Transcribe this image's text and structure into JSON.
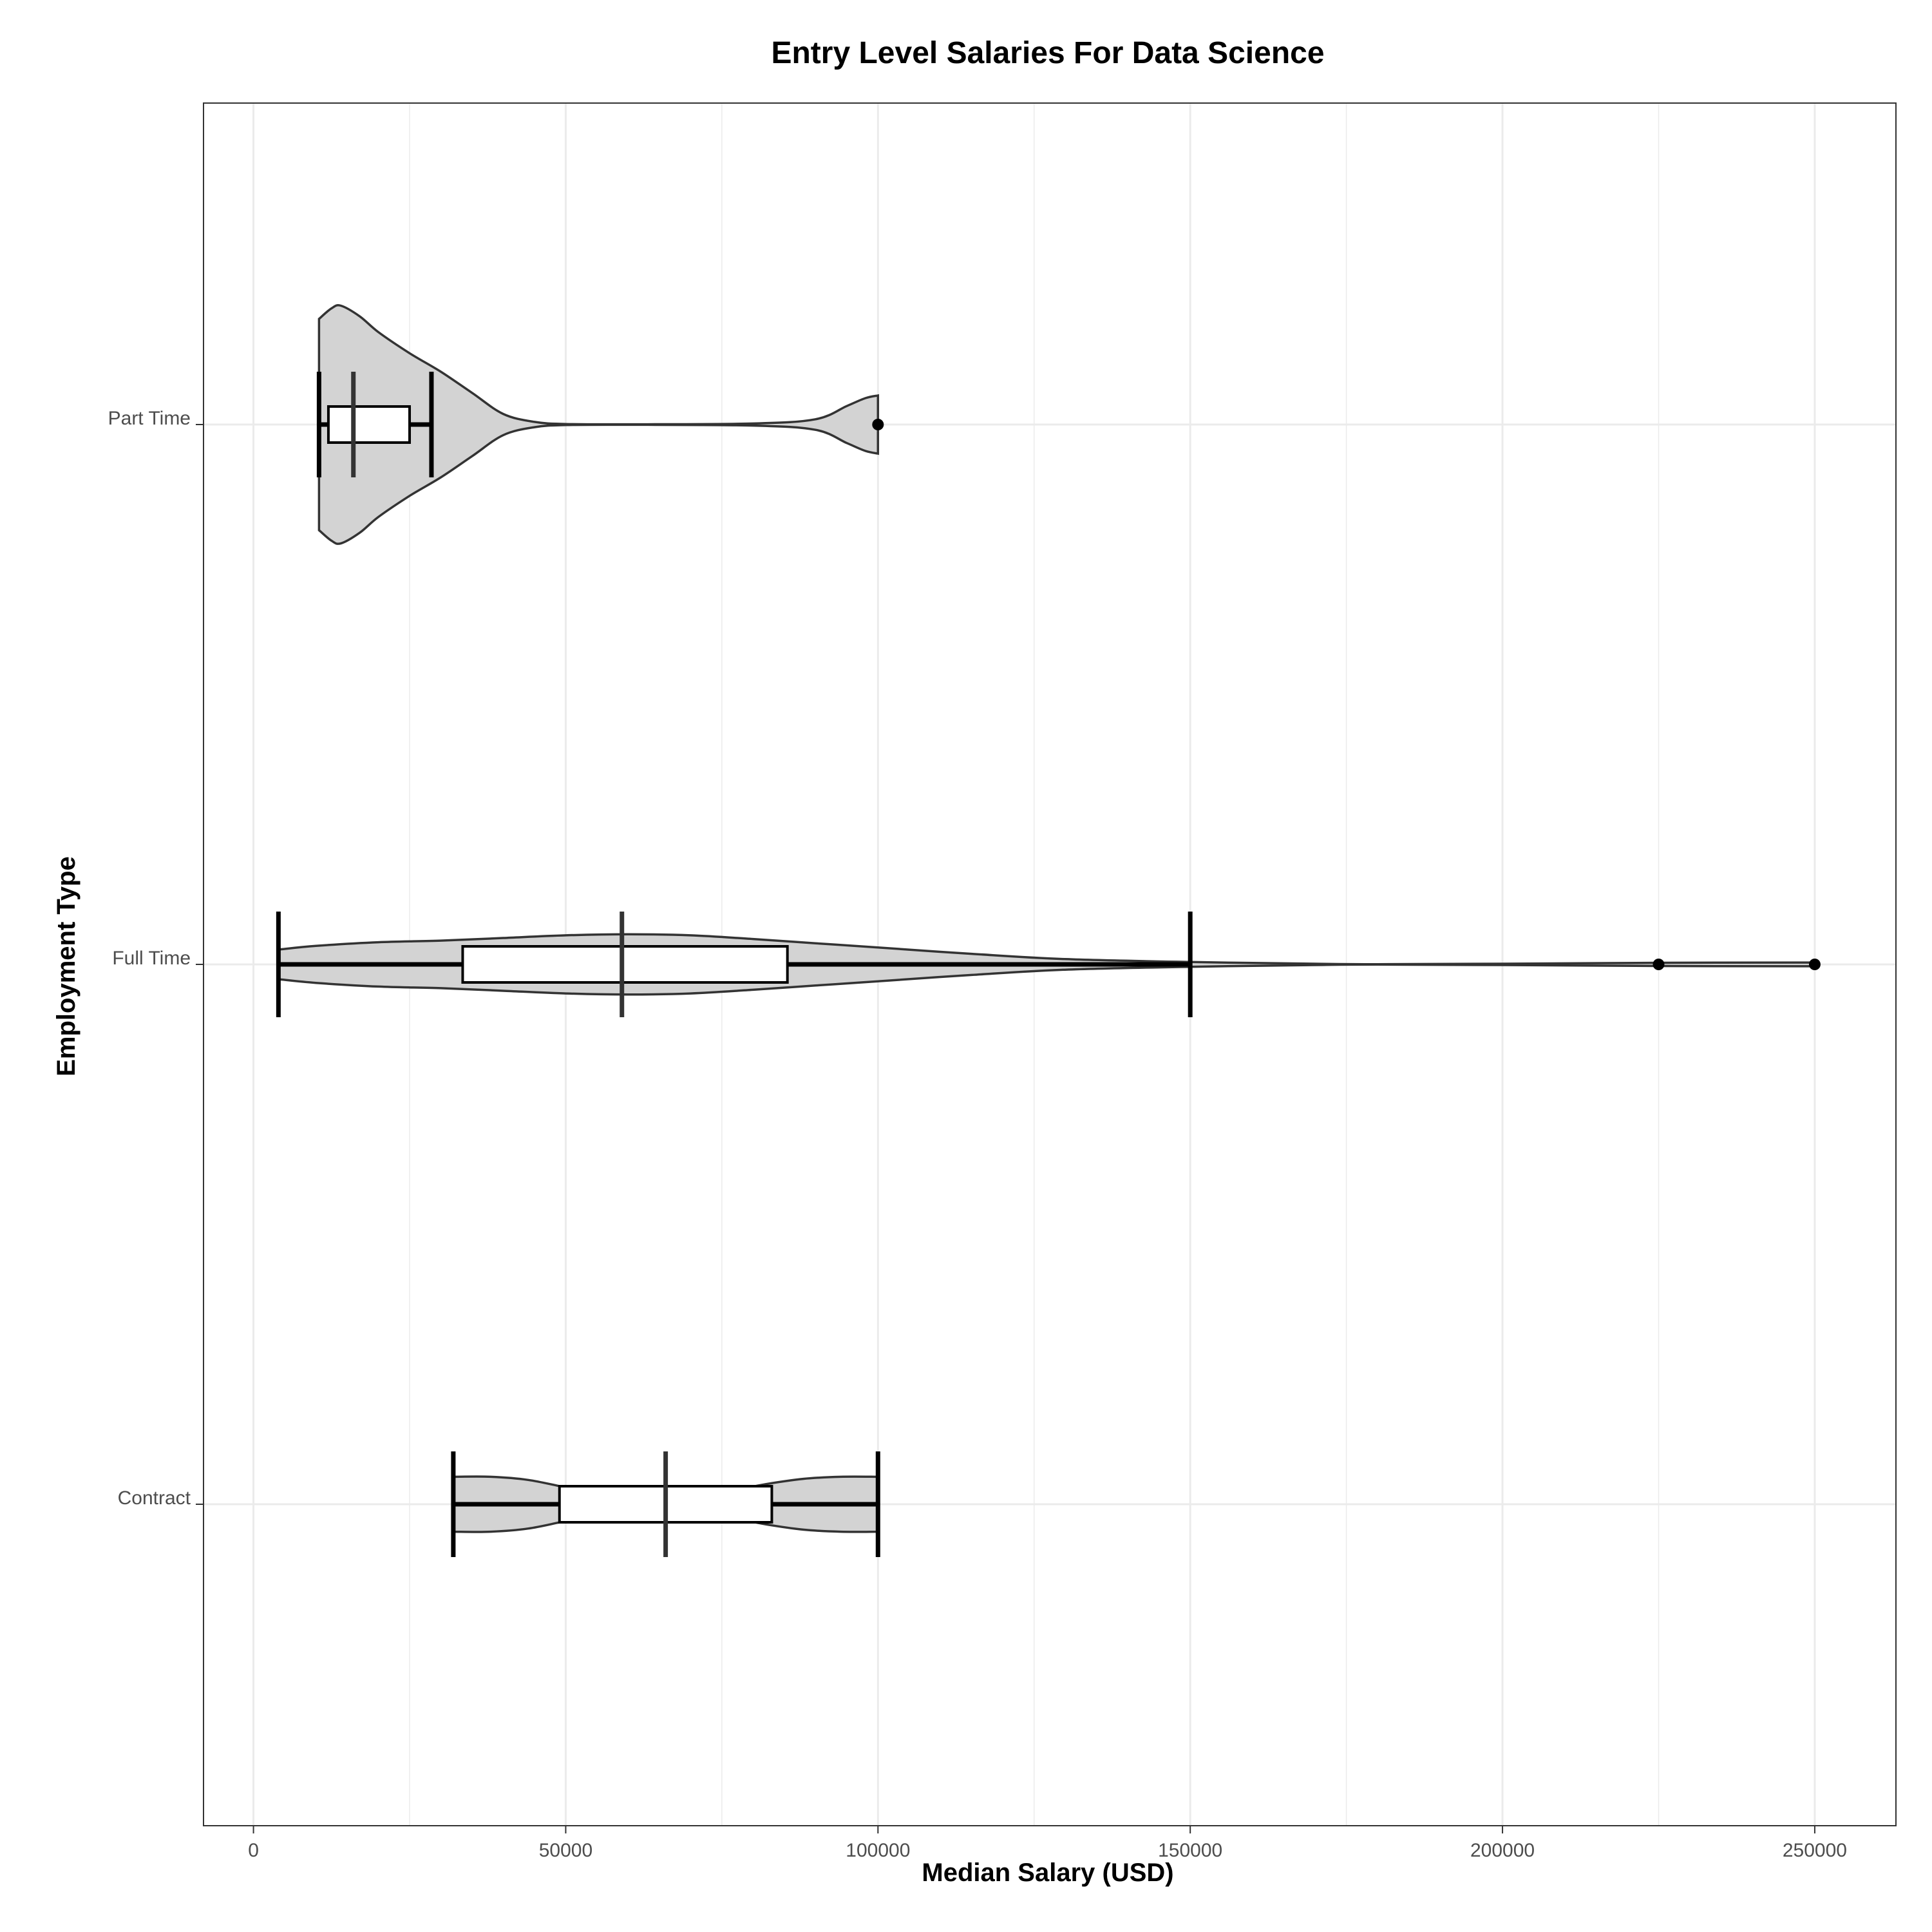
{
  "chart_data": {
    "type": "violin",
    "title": "Entry Level Salaries For Data Science",
    "xlabel": "Median Salary (USD)",
    "ylabel": "Employment Type",
    "xlim": [
      -8000,
      263000
    ],
    "x_ticks": [
      0,
      50000,
      100000,
      150000,
      200000,
      250000
    ],
    "x_tick_labels": [
      "0",
      "50000",
      "100000",
      "150000",
      "200000",
      "250000"
    ],
    "categories": [
      "Contract",
      "Full Time",
      "Part Time"
    ],
    "grid": true,
    "legend": "none",
    "colors": {
      "violin_fill": "#d3d3d3",
      "violin_stroke": "#333333",
      "box_fill": "#ffffff",
      "box_stroke": "#000000",
      "median": "#333333",
      "grid": "#ebebeb",
      "panel_border": "#333333",
      "point": "#000000"
    },
    "series": [
      {
        "category": "Contract",
        "min": 32000,
        "q1": 49000,
        "median": 66000,
        "q3": 83000,
        "max": 100000,
        "outliers": [],
        "violin_range": [
          32000,
          100000
        ],
        "violin_profile": [
          [
            32000,
            0.52
          ],
          [
            38000,
            0.52
          ],
          [
            44000,
            0.46
          ],
          [
            50000,
            0.32
          ],
          [
            56000,
            0.2
          ],
          [
            62000,
            0.13
          ],
          [
            66000,
            0.12
          ],
          [
            70000,
            0.14
          ],
          [
            76000,
            0.24
          ],
          [
            82000,
            0.38
          ],
          [
            88000,
            0.48
          ],
          [
            94000,
            0.52
          ],
          [
            100000,
            0.52
          ]
        ]
      },
      {
        "category": "Full Time",
        "min": 4000,
        "q1": 33500,
        "median": 59000,
        "q3": 85500,
        "max": 150000,
        "outliers": [
          225000,
          250000
        ],
        "violin_range": [
          4000,
          250000
        ],
        "violin_profile": [
          [
            4000,
            0.28
          ],
          [
            10000,
            0.35
          ],
          [
            20000,
            0.42
          ],
          [
            30000,
            0.45
          ],
          [
            40000,
            0.5
          ],
          [
            50000,
            0.55
          ],
          [
            60000,
            0.57
          ],
          [
            70000,
            0.55
          ],
          [
            80000,
            0.48
          ],
          [
            90000,
            0.4
          ],
          [
            100000,
            0.32
          ],
          [
            115000,
            0.2
          ],
          [
            130000,
            0.1
          ],
          [
            150000,
            0.045
          ],
          [
            170000,
            0.012
          ],
          [
            180000,
            0.004
          ],
          [
            200000,
            0.012
          ],
          [
            225000,
            0.03
          ],
          [
            250000,
            0.035
          ]
        ]
      },
      {
        "category": "Part Time",
        "min": 10500,
        "q1": 12000,
        "median": 16000,
        "q3": 25000,
        "max": 28500,
        "outliers": [
          100000
        ],
        "violin_range": [
          10500,
          100000
        ],
        "violin_profile": [
          [
            10500,
            2.0
          ],
          [
            12500,
            2.2
          ],
          [
            14000,
            2.25
          ],
          [
            17000,
            2.05
          ],
          [
            20000,
            1.75
          ],
          [
            25000,
            1.35
          ],
          [
            30000,
            1.0
          ],
          [
            35000,
            0.6
          ],
          [
            40000,
            0.2
          ],
          [
            45000,
            0.05
          ],
          [
            50000,
            0.01
          ],
          [
            60000,
            0.005
          ],
          [
            80000,
            0.02
          ],
          [
            90000,
            0.1
          ],
          [
            95000,
            0.35
          ],
          [
            98000,
            0.5
          ],
          [
            100000,
            0.55
          ]
        ]
      }
    ]
  }
}
